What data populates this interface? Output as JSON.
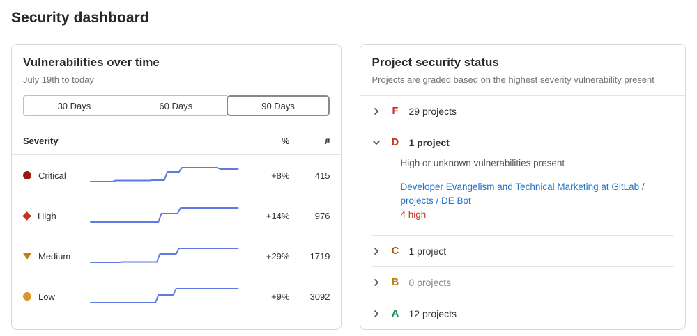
{
  "page": {
    "title": "Security dashboard"
  },
  "vuln_panel": {
    "title": "Vulnerabilities over time",
    "subtitle": "July 19th to today",
    "range_buttons": [
      {
        "label": "30 Days",
        "selected": false
      },
      {
        "label": "60 Days",
        "selected": false
      },
      {
        "label": "90 Days",
        "selected": true
      }
    ],
    "spark_color": "#617ae2",
    "table": {
      "headers": {
        "severity": "Severity",
        "percent": "%",
        "count": "#"
      },
      "rows": [
        {
          "severity": "Critical",
          "icon": "severity-critical-icon",
          "icon_color": "#951b0f",
          "percent": "+8%",
          "count": "415",
          "spark": [
            [
              0,
              26
            ],
            [
              15,
              26
            ],
            [
              17,
              24.5
            ],
            [
              40,
              24.5
            ],
            [
              42,
              24
            ],
            [
              50,
              24
            ],
            [
              52,
              12
            ],
            [
              60,
              12
            ],
            [
              62,
              6
            ],
            [
              86,
              6
            ],
            [
              88,
              8
            ],
            [
              100,
              8
            ]
          ]
        },
        {
          "severity": "High",
          "icon": "severity-high-icon",
          "icon_color": "#c0341d",
          "percent": "+14%",
          "count": "976",
          "spark": [
            [
              0,
              26
            ],
            [
              46,
              26
            ],
            [
              48,
              14
            ],
            [
              59,
              14
            ],
            [
              61,
              6
            ],
            [
              100,
              6
            ]
          ]
        },
        {
          "severity": "Medium",
          "icon": "severity-medium-icon",
          "icon_color": "#c17d10",
          "percent": "+29%",
          "count": "1719",
          "spark": [
            [
              0,
              26
            ],
            [
              20,
              26
            ],
            [
              21,
              25.5
            ],
            [
              45,
              25.5
            ],
            [
              47,
              14
            ],
            [
              58,
              14
            ],
            [
              60,
              6
            ],
            [
              100,
              6
            ]
          ]
        },
        {
          "severity": "Low",
          "icon": "severity-low-icon",
          "icon_color": "#d99530",
          "percent": "+9%",
          "count": "3092",
          "spark": [
            [
              0,
              26
            ],
            [
              44,
              26
            ],
            [
              46,
              15
            ],
            [
              56,
              15
            ],
            [
              58,
              6
            ],
            [
              96,
              6
            ],
            [
              100,
              6
            ]
          ]
        }
      ]
    }
  },
  "status_panel": {
    "title": "Project security status",
    "subtitle": "Projects are graded based on the highest severity vulnerability present",
    "grades": [
      {
        "letter": "F",
        "letter_color": "#c5331f",
        "summary": "29 projects",
        "expanded": false
      },
      {
        "letter": "D",
        "letter_color": "#c5331f",
        "summary": "1 project",
        "expanded": true,
        "description": "High or unknown vulnerabilities present",
        "project_link": "Developer Evangelism and Technical Marketing at GitLab / projects / DE Bot",
        "finding": "4 high",
        "finding_color": "#c5331f"
      },
      {
        "letter": "C",
        "letter_color": "#ab5600",
        "summary": "1 project",
        "expanded": false
      },
      {
        "letter": "B",
        "letter_color": "#bf7b0b",
        "summary": "0 projects",
        "expanded": false
      },
      {
        "letter": "A",
        "letter_color": "#188a4f",
        "summary": "12 projects",
        "expanded": false
      }
    ]
  }
}
